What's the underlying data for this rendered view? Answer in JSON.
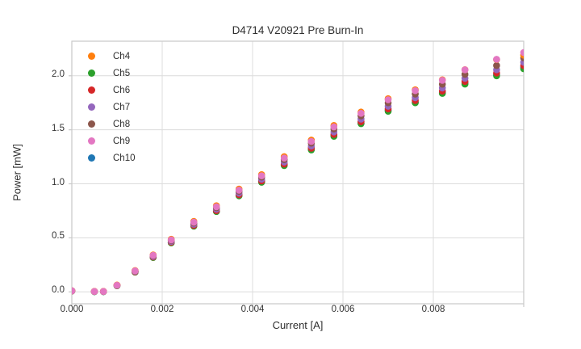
{
  "figure": {
    "background": "#ffffff"
  },
  "chart_data": {
    "type": "scatter",
    "title": "D4714 V20921 Pre Burn-In",
    "xlabel": "Current [A]",
    "ylabel": "Power [mW]",
    "xlim": [
      0,
      0.01
    ],
    "ylim": [
      -0.11,
      2.32
    ],
    "grid": true,
    "legend_position": "upper left",
    "x_ticks": [
      {
        "value": 0.0,
        "label": "0.000"
      },
      {
        "value": 0.002,
        "label": "0.002"
      },
      {
        "value": 0.004,
        "label": "0.004"
      },
      {
        "value": 0.006,
        "label": "0.006"
      },
      {
        "value": 0.008,
        "label": "0.008"
      },
      {
        "value": 0.01,
        "label": ""
      }
    ],
    "y_ticks": [
      {
        "value": 0.0,
        "label": "0.0"
      },
      {
        "value": 0.5,
        "label": "0.5"
      },
      {
        "value": 1.0,
        "label": "1.0"
      },
      {
        "value": 1.5,
        "label": "1.5"
      },
      {
        "value": 2.0,
        "label": "2.0"
      }
    ],
    "x": [
      0.0,
      0.0005,
      0.0007,
      0.001,
      0.0014,
      0.0018,
      0.0022,
      0.0027,
      0.0032,
      0.0037,
      0.0042,
      0.0047,
      0.0053,
      0.0058,
      0.0064,
      0.007,
      0.0076,
      0.0082,
      0.0087,
      0.0094,
      0.01
    ],
    "series": [
      {
        "name": "Ch4",
        "color": "#ff7f0e",
        "values": [
          0.01,
          0.005,
          0.005,
          0.063,
          0.197,
          0.342,
          0.487,
          0.652,
          0.797,
          0.951,
          1.085,
          1.251,
          1.405,
          1.54,
          1.664,
          1.788,
          1.87,
          1.963,
          2.056,
          2.15,
          2.19
        ]
      },
      {
        "name": "Ch5",
        "color": "#2ca02c",
        "values": [
          0.008,
          0.002,
          0.002,
          0.057,
          0.183,
          0.318,
          0.454,
          0.608,
          0.744,
          0.889,
          1.015,
          1.169,
          1.314,
          1.44,
          1.557,
          1.672,
          1.75,
          1.837,
          1.923,
          2.0,
          2.065
        ]
      },
      {
        "name": "Ch6",
        "color": "#d62728",
        "values": [
          0.009,
          0.003,
          0.003,
          0.059,
          0.186,
          0.323,
          0.46,
          0.616,
          0.752,
          0.899,
          1.027,
          1.183,
          1.33,
          1.458,
          1.575,
          1.693,
          1.771,
          1.859,
          1.947,
          2.026,
          2.094
        ]
      },
      {
        "name": "Ch7",
        "color": "#9467bd",
        "values": [
          0.009,
          0.003,
          0.003,
          0.06,
          0.189,
          0.328,
          0.467,
          0.626,
          0.765,
          0.914,
          1.043,
          1.202,
          1.35,
          1.48,
          1.599,
          1.718,
          1.797,
          1.887,
          1.976,
          2.056,
          2.125
        ]
      },
      {
        "name": "Ch8",
        "color": "#8c564b",
        "values": [
          0.01,
          0.004,
          0.004,
          0.061,
          0.192,
          0.334,
          0.476,
          0.637,
          0.779,
          0.931,
          1.062,
          1.224,
          1.376,
          1.507,
          1.629,
          1.75,
          1.831,
          1.922,
          2.013,
          2.095,
          2.165
        ]
      },
      {
        "name": "Ch9",
        "color": "#e377c2",
        "values": [
          0.01,
          0.004,
          0.004,
          0.061,
          0.194,
          0.338,
          0.481,
          0.645,
          0.788,
          0.941,
          1.074,
          1.238,
          1.392,
          1.527,
          1.652,
          1.778,
          1.862,
          1.958,
          2.055,
          2.152,
          2.215
        ]
      },
      {
        "name": "Ch10",
        "color": "#1f77b4",
        "values": [
          0.008,
          0.002,
          0.002,
          0.058,
          0.184,
          0.321,
          0.457,
          0.612,
          0.748,
          0.893,
          1.02,
          1.175,
          1.32,
          1.447,
          1.564,
          1.68,
          1.758,
          1.846,
          1.932,
          2.01,
          2.078
        ]
      }
    ],
    "draw_order": [
      "Ch10",
      "Ch5",
      "Ch6",
      "Ch7",
      "Ch8",
      "Ch4",
      "Ch9"
    ],
    "marker": {
      "shape": "circle",
      "radius_px": 4.3
    },
    "colors": {
      "grid": "#dcdcdc",
      "spine": "#c9c9c9",
      "text": "#2e2e2e"
    }
  }
}
